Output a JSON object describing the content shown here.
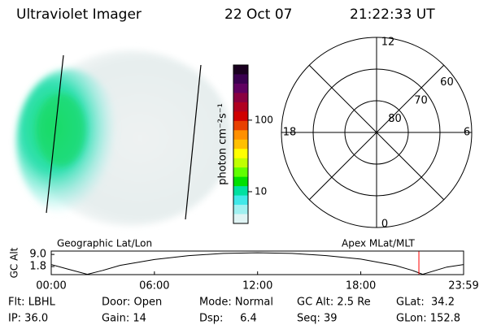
{
  "header": {
    "title": "Ultraviolet Imager",
    "date": "22 Oct 07",
    "time": "21:22:33 UT"
  },
  "colorbar": {
    "label": "photon cm⁻²s⁻¹",
    "scale": "log",
    "lim": [
      3.6,
      590
    ],
    "ticks": [
      10,
      100
    ],
    "colors": [
      "#1a0020",
      "#3a0050",
      "#600060",
      "#8a0040",
      "#b00020",
      "#d00000",
      "#e84000",
      "#ff9000",
      "#ffc000",
      "#ffff00",
      "#c0ff00",
      "#60ff00",
      "#00e000",
      "#00e0a0",
      "#40e8e8",
      "#a0f0f0",
      "#e0f4f4"
    ]
  },
  "polar": {
    "lat_lim": [
      90,
      60
    ],
    "lat_rings": [
      80,
      70,
      60
    ],
    "mlt_labels": [
      "12",
      "18",
      "6",
      "0"
    ]
  },
  "timeline": {
    "left_label": "Geographic Lat/Lon",
    "right_label": "Apex MLat/MLT",
    "ylabel": "GC Alt",
    "xlim": [
      0,
      23.98
    ],
    "ylim": [
      -3,
      11
    ],
    "yticks": [
      {
        "value": 9.0,
        "label": "9.0"
      },
      {
        "value": 1.8,
        "label": "1.8"
      }
    ],
    "xticks": [
      {
        "value": 0,
        "label": "00:00"
      },
      {
        "value": 6,
        "label": "06:00"
      },
      {
        "value": 12,
        "label": "12:00"
      },
      {
        "value": 18,
        "label": "18:00"
      },
      {
        "value": 23.98,
        "label": "23:59"
      }
    ],
    "x": [
      0,
      1,
      2.1,
      3,
      4,
      6,
      8,
      10,
      12,
      14,
      16,
      18,
      20,
      21,
      21.6,
      23,
      23.98
    ],
    "values": [
      3.0,
      0.2,
      -2.8,
      -0.5,
      2.5,
      6.0,
      8.3,
      9.6,
      10.0,
      9.6,
      8.3,
      6.2,
      2.5,
      -0.5,
      -2.8,
      1.5,
      3.0
    ],
    "line_color": "#000000",
    "marker_x": 21.38,
    "marker_color": "#ff0000"
  },
  "status": [
    [
      "Flt: LBHL",
      "IP: 36.0"
    ],
    [
      "Door: Open",
      "Gain: 14"
    ],
    [
      "Mode: Normal",
      "Dsp:     6.4"
    ],
    [
      "GC Alt: 2.5 Re",
      "Seq: 39"
    ],
    [
      "GLat:  34.2",
      "GLon: 152.8"
    ]
  ]
}
